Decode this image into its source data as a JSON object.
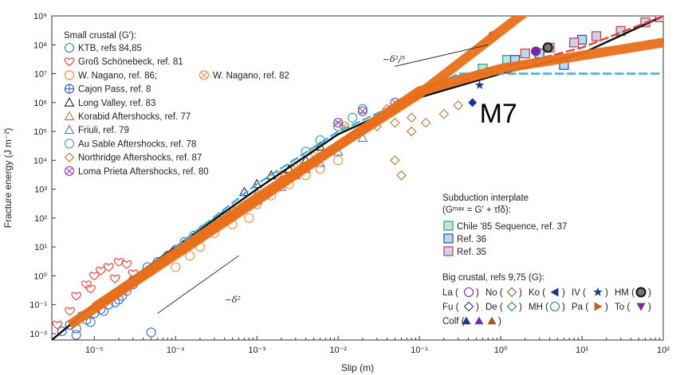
{
  "chart_data": {
    "type": "scatter",
    "title": "",
    "xlabel": "Slip (m)",
    "ylabel": "Fracture energy (J m⁻²)",
    "x_scale": "log",
    "y_scale": "log",
    "xlim": [
      3e-06,
      100
    ],
    "ylim": [
      0.006,
      1000000000.0
    ],
    "x_ticks": [
      {
        "v": 1e-05,
        "label": "10⁻⁵"
      },
      {
        "v": 0.0001,
        "label": "10⁻⁴"
      },
      {
        "v": 0.001,
        "label": "10⁻³"
      },
      {
        "v": 0.01,
        "label": "10⁻²"
      },
      {
        "v": 0.1,
        "label": "10⁻¹"
      },
      {
        "v": 1,
        "label": "10⁰"
      },
      {
        "v": 10,
        "label": "10¹"
      },
      {
        "v": 100,
        "label": "10²"
      }
    ],
    "y_ticks": [
      {
        "v": 0.01,
        "label": "10⁻²"
      },
      {
        "v": 0.1,
        "label": "10⁻¹"
      },
      {
        "v": 1,
        "label": "10⁰"
      },
      {
        "v": 10,
        "label": "10¹"
      },
      {
        "v": 100,
        "label": "10²"
      },
      {
        "v": 1000.0,
        "label": "10³"
      },
      {
        "v": 10000.0,
        "label": "10⁴"
      },
      {
        "v": 100000.0,
        "label": "10⁵"
      },
      {
        "v": 1000000.0,
        "label": "10⁶"
      },
      {
        "v": 10000000.0,
        "label": "10⁷"
      },
      {
        "v": 100000000.0,
        "label": "10⁸"
      },
      {
        "v": 1000000000.0,
        "label": "10⁹"
      }
    ],
    "legend_small_title": "Small crustal (G′):",
    "legend_small": [
      {
        "label": "KTB, refs 84,85",
        "marker": "circle",
        "color": "#3a6fc4"
      },
      {
        "label": "Groß Schönebeck, ref. 81",
        "marker": "heart",
        "color": "#e0403a"
      },
      {
        "label": "W. Nagano, ref. 86;",
        "marker": "circle",
        "color": "#f08a3c",
        "label2": "W. Nagano, ref. 82",
        "marker2": "circlex"
      },
      {
        "label": "Cajon Pass, ref. 8",
        "marker": "circleplus",
        "color": "#2f5aa8"
      },
      {
        "label": "Long Valley, ref. 83",
        "marker": "triangle",
        "color": "#222222"
      },
      {
        "label": "Korabid Aftershocks, ref. 77",
        "marker": "triangle",
        "color": "#b8744a"
      },
      {
        "label": "Friuli, ref. 79",
        "marker": "triangle",
        "color": "#5a7bc0"
      },
      {
        "label": "Au Sable Aftershocks, ref. 78",
        "marker": "circle",
        "color": "#3aa08a"
      },
      {
        "label": "Northridge Aftershocks, ref. 87",
        "marker": "diamond",
        "color": "#b07a3e"
      },
      {
        "label": "Loma Prieta Aftershocks, ref. 80",
        "marker": "circlex",
        "color": "#8a3ab0"
      }
    ],
    "legend_sub_title": "Subduction interplate",
    "legend_sub_formula": "(Gᵐᵃˣ = G′ + τfδ):",
    "legend_sub": [
      {
        "label": "Chile '85 Sequence, ref. 37",
        "fill": "#bfe8dc",
        "stroke": "#3aa08a"
      },
      {
        "label": "Ref. 36",
        "fill": "#bcd8f2",
        "stroke": "#2f5aa8"
      },
      {
        "label": "Ref. 35",
        "fill": "#bcd8f2",
        "stroke": "#e0403a"
      }
    ],
    "legend_big_title": "Big crustal, refs 9,75 (G):",
    "legend_big_rows": [
      [
        {
          "label": "La (",
          "marker": "circle",
          "color": "#7a2a9a",
          "end": ")"
        },
        {
          "label": "No (",
          "marker": "diamond",
          "color": "#9a5a2a",
          "end": ")"
        },
        {
          "label": "Ko (",
          "marker": "triangle-left",
          "color": "#1a3a8a",
          "end": ")"
        },
        {
          "label": "IV (",
          "marker": "star",
          "color": "#1a3a8a",
          "end": ")"
        },
        {
          "label": "HM (",
          "marker": "circle-ring",
          "color": "#333333",
          "end": ")"
        }
      ],
      [
        {
          "label": "Fu (",
          "marker": "diamond",
          "color": "#1a3a8a",
          "end": ")"
        },
        {
          "label": "De (",
          "marker": "diamond",
          "color": "#2a8a4a",
          "end": ")"
        },
        {
          "label": "MH (",
          "marker": "circle",
          "color": "#2a8a4a",
          "end": ")"
        },
        {
          "label": "Pa (",
          "marker": "triangle-right",
          "color": "#b8642a",
          "end": ")"
        },
        {
          "label": "To (",
          "marker": "triangle-down",
          "color": "#7a2a9a",
          "end": ")"
        }
      ],
      [
        {
          "label": "Colf (",
          "marker": "triangle-trio",
          "color": "#1a3a8a",
          "end": ")"
        }
      ]
    ],
    "annotations": [
      {
        "text": "~δ²/³",
        "x": 0.035,
        "y": 25000000.0
      },
      {
        "text": "~δ²",
        "x": 0.0004,
        "y": 0.12
      },
      {
        "text": "M7",
        "x": 0.55,
        "y": 200000.0
      }
    ],
    "reference_slopes": [
      {
        "name": "δ^2/3",
        "x": [
          0.05,
          0.7
        ],
        "y": [
          18000000.0,
          100000000.0
        ]
      },
      {
        "name": "δ^2",
        "x": [
          6e-05,
          0.0006
        ],
        "y": [
          0.05,
          5
        ]
      }
    ],
    "series": [
      {
        "name": "black fit",
        "kind": "line",
        "color": "#111111",
        "x": [
          3e-06,
          1e-05,
          0.0001,
          0.001,
          0.01,
          0.1,
          1,
          10,
          100
        ],
        "y": [
          0.006,
          0.1,
          10,
          1000,
          80000.0,
          1500000.0,
          10000000.0,
          50000000.0,
          1000000000.0
        ]
      },
      {
        "name": "red dashed",
        "kind": "dashed",
        "color": "#e0403a",
        "x": [
          0.05,
          1,
          10,
          100
        ],
        "y": [
          1000000.0,
          15000000.0,
          80000000.0,
          1000000000.0
        ]
      },
      {
        "name": "cyan dashed",
        "kind": "dashed",
        "color": "#3ab0e0",
        "x": [
          0.0001,
          0.001,
          0.01,
          0.1,
          0.3,
          100
        ],
        "y": [
          10,
          1500,
          100000.0,
          2000000.0,
          10000000.0,
          10000000.0
        ]
      },
      {
        "name": "orange line 1",
        "kind": "thick",
        "color": "#e8701a",
        "x": [
          1e-05,
          0.001,
          0.1,
          2.5
        ],
        "y": [
          0.08,
          500,
          2000000.0,
          2200000000.0
        ]
      },
      {
        "name": "orange line 2",
        "kind": "thick",
        "color": "#e8701a",
        "x": [
          5e-06,
          0.001,
          0.1,
          1,
          100
        ],
        "y": [
          0.02,
          400,
          2500000.0,
          15000000.0,
          120000000.0
        ]
      }
    ],
    "scatter_groups": [
      {
        "name": "KTB",
        "marker": "circle",
        "color": "#3a6fc4",
        "x": [
          4e-06,
          5e-06,
          6e-06,
          7e-06,
          8e-06,
          1e-05,
          1.2e-05,
          1.5e-05,
          2e-05,
          2.5e-05,
          3e-05,
          4e-05,
          5e-05,
          6e-06,
          9e-06,
          1.3e-05,
          1.8e-05,
          2.2e-05,
          3e-05,
          4.5e-05
        ],
        "y": [
          0.012,
          0.02,
          0.015,
          0.04,
          0.03,
          0.05,
          0.07,
          0.1,
          0.15,
          0.3,
          0.5,
          1,
          1.5,
          0.009,
          0.025,
          0.06,
          0.12,
          0.2,
          0.7,
          2
        ]
      },
      {
        "name": "KTB2",
        "marker": "circle",
        "color": "#3a6fc4",
        "x": [
          6e-05,
          8e-05,
          0.0001,
          0.00013,
          0.00017,
          0.00022,
          0.0003,
          0.0004,
          5e-05
        ],
        "y": [
          3,
          5,
          8,
          15,
          25,
          40,
          60,
          120,
          0.011
        ]
      },
      {
        "name": "Gross",
        "marker": "heart",
        "color": "#e0403a",
        "x": [
          3.5e-06,
          5e-06,
          6e-06,
          8e-06,
          1e-05,
          1.2e-05,
          1.5e-05,
          2e-05,
          2.5e-05,
          3e-05,
          1.8e-05,
          9e-06
        ],
        "y": [
          0.02,
          0.06,
          0.2,
          0.5,
          1,
          1.5,
          2,
          3,
          2.5,
          1.2,
          0.8,
          0.35
        ]
      },
      {
        "name": "WNagano",
        "marker": "circle",
        "color": "#f08a3c",
        "x": [
          0.0001,
          0.00015,
          0.0002,
          0.0003,
          0.0005,
          0.0008,
          0.001,
          0.0015,
          0.0025,
          0.004,
          0.006,
          0.01,
          0.0002,
          0.0004,
          0.0007
        ],
        "y": [
          2,
          5,
          10,
          30,
          60,
          100,
          300,
          600,
          1500,
          3000,
          5000,
          10000.0,
          20,
          80,
          250
        ]
      },
      {
        "name": "WNagano82",
        "marker": "circlex",
        "color": "#f08a3c",
        "x": [
          0.002,
          0.005,
          0.012,
          0.003
        ],
        "y": [
          3000.0,
          20000.0,
          150000.0,
          8000.0
        ]
      },
      {
        "name": "LongValley",
        "marker": "triangle",
        "color": "#222222",
        "x": [
          0.0007,
          0.001,
          0.0015,
          0.0025,
          0.004,
          0.006
        ],
        "y": [
          800,
          1500,
          3000,
          5000,
          10000.0,
          30000.0
        ]
      },
      {
        "name": "AuSable",
        "marker": "circle",
        "color": "#3aa08a",
        "x": [
          0.004,
          0.006,
          0.01,
          0.015,
          0.02
        ],
        "y": [
          20000.0,
          50000.0,
          150000.0,
          300000.0,
          600000.0
        ]
      },
      {
        "name": "Northridge",
        "marker": "diamond",
        "color": "#b07a3e",
        "x": [
          0.03,
          0.05,
          0.08,
          0.12,
          0.2,
          0.3,
          0.08,
          0.05,
          0.04,
          0.06
        ],
        "y": [
          150000.0,
          200000.0,
          300000.0,
          200000.0,
          400000.0,
          800000.0,
          100000.0,
          10000.0,
          600000.0,
          3000.0
        ]
      },
      {
        "name": "LomaPrieta",
        "marker": "circlex",
        "color": "#8a3ab0",
        "x": [
          0.01,
          0.02,
          0.05,
          0.1,
          0.2,
          0.8
        ],
        "y": [
          200000.0,
          500000.0,
          1000000.0,
          2000000.0,
          5000000.0,
          200000000.0
        ]
      },
      {
        "name": "Friuli",
        "marker": "triangle",
        "color": "#5a7bc0",
        "x": [
          0.001,
          0.002,
          0.003,
          0.006,
          0.01,
          0.02
        ],
        "y": [
          400,
          1200,
          3000,
          8000,
          20000.0,
          60000.0
        ]
      },
      {
        "name": "Korabid",
        "marker": "triangle",
        "color": "#b8744a",
        "x": [
          0.0005,
          0.001,
          0.002,
          0.004
        ],
        "y": [
          200,
          700,
          2000,
          5000
        ]
      },
      {
        "name": "Chile",
        "marker": "square",
        "color": "#3aa08a",
        "fill": "#bfe8dc",
        "x": [
          0.3,
          0.6,
          1.2
        ],
        "y": [
          6000000.0,
          15000000.0,
          30000000.0
        ]
      },
      {
        "name": "Ref36",
        "marker": "square",
        "color": "#2f5aa8",
        "fill": "#bcd8f2",
        "x": [
          1.5,
          3,
          6,
          10
        ],
        "y": [
          30000000.0,
          50000000.0,
          20000000.0,
          150000000.0
        ]
      },
      {
        "name": "Ref35",
        "marker": "square",
        "color": "#e0403a",
        "fill": "#bcd8f2",
        "x": [
          2,
          4,
          8,
          15,
          30,
          60,
          90
        ],
        "y": [
          50000000.0,
          80000000.0,
          120000000.0,
          200000000.0,
          300000000.0,
          600000000.0,
          900000000.0
        ]
      },
      {
        "name": "BigLa",
        "marker": "circle-filled",
        "color": "#7a2a9a",
        "x": [
          2.7
        ],
        "y": [
          60000000.0
        ]
      },
      {
        "name": "BigHM",
        "marker": "circle-ring",
        "color": "#333333",
        "x": [
          3.8
        ],
        "y": [
          80000000.0
        ]
      },
      {
        "name": "BigFu",
        "marker": "diamond-filled",
        "color": "#1a3a8a",
        "x": [
          0.45
        ],
        "y": [
          1000000.0
        ]
      },
      {
        "name": "BigIV",
        "marker": "star",
        "color": "#1a3a8a",
        "x": [
          0.55
        ],
        "y": [
          4000000.0
        ]
      }
    ]
  }
}
